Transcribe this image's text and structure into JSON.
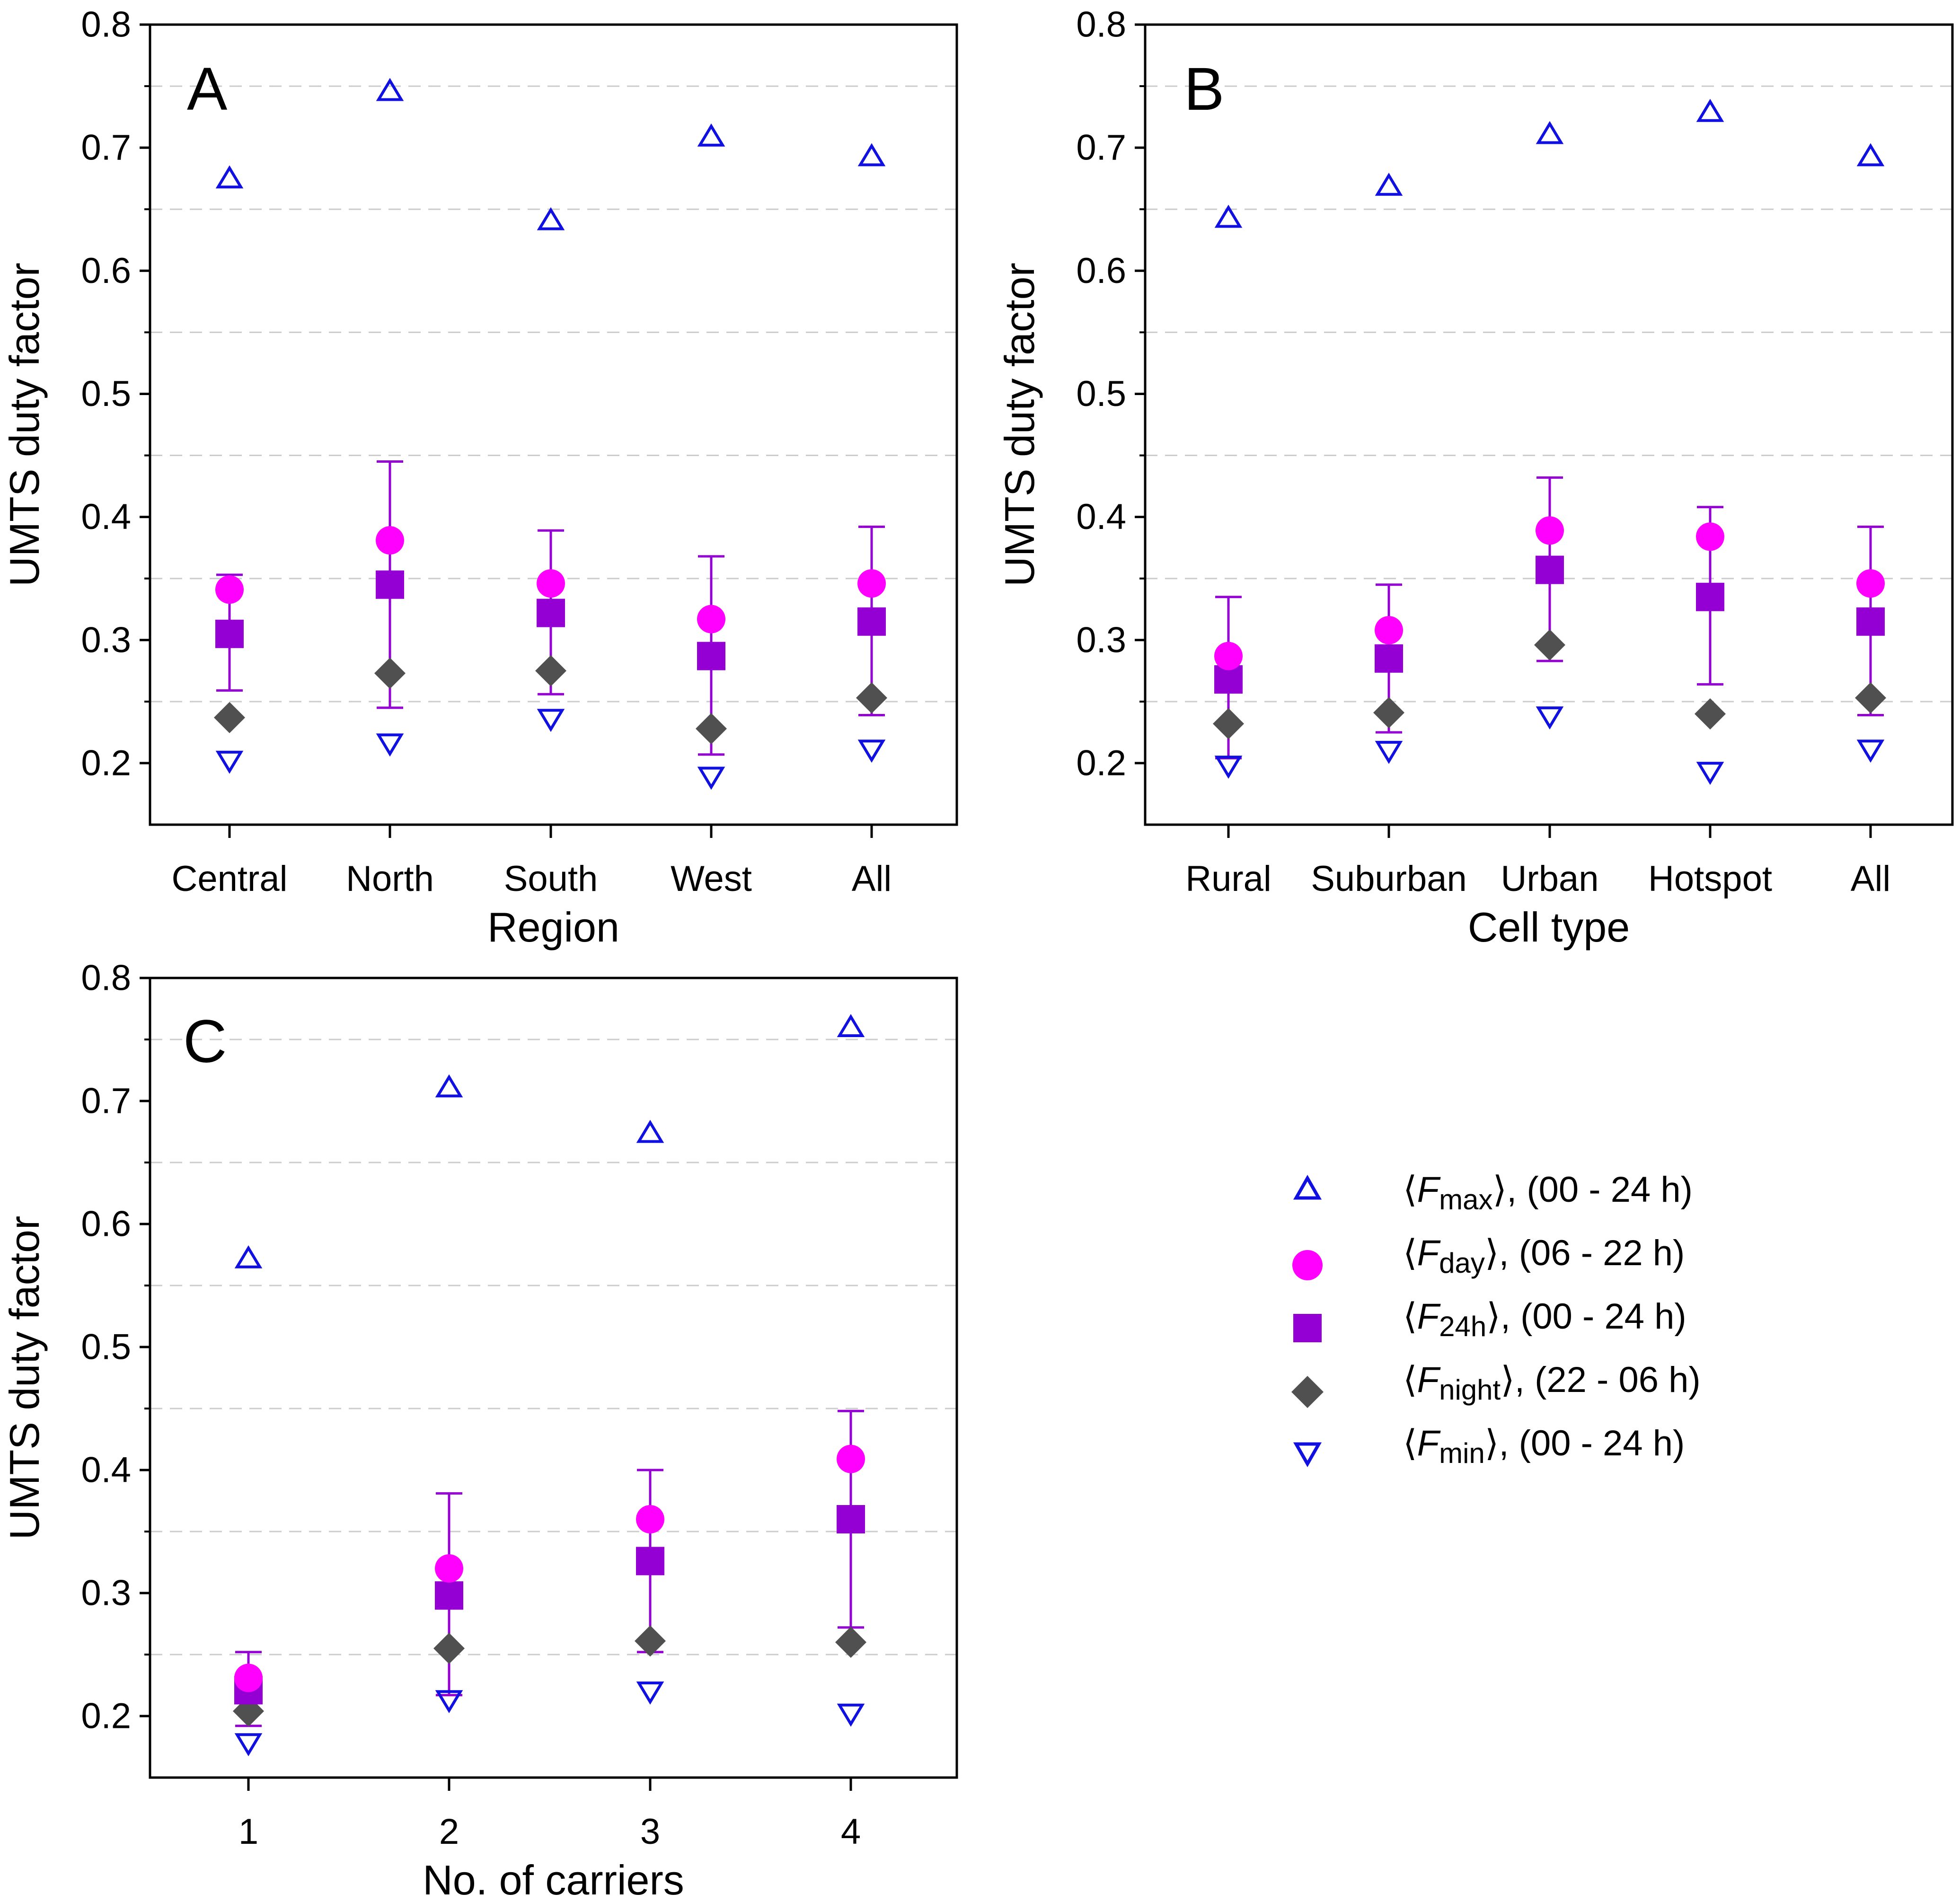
{
  "colors": {
    "max": "#1010e0",
    "day": "#ff00ff",
    "h24": "#9400d3",
    "night": "#505050",
    "min": "#1010e0",
    "err": "#9400d3",
    "grid": "#cccccc",
    "axis": "#000000"
  },
  "legend": {
    "max": {
      "open": "⟨",
      "F": "F",
      "sub": "max",
      "close": "⟩",
      "period": ", (00 - 24 h)"
    },
    "day": {
      "open": "⟨",
      "F": "F",
      "sub": "day",
      "close": "⟩",
      "period": ", (06 - 22 h)"
    },
    "h24": {
      "open": "⟨",
      "F": "F",
      "sub": "24h",
      "close": "⟩",
      "period": ", (00 - 24 h)"
    },
    "night": {
      "open": "⟨",
      "F": "F",
      "sub": "night",
      "close": "⟩",
      "period": ", (22 - 06 h)"
    },
    "min": {
      "open": "⟨",
      "F": "F",
      "sub": "min",
      "close": "⟩",
      "period": ", (00 - 24 h)"
    }
  },
  "chart_data": [
    {
      "type": "scatter",
      "panel": "A",
      "xlabel": "Region",
      "ylabel": "UMTS duty factor",
      "ylim": [
        0.15,
        0.8
      ],
      "yticks": [
        "0.2",
        "0.3",
        "0.4",
        "0.5",
        "0.6",
        "0.7",
        "0.8"
      ],
      "categories": [
        "Central",
        "North",
        "South",
        "West",
        "All"
      ],
      "series": [
        {
          "name": "Fmax",
          "values": [
            0.675,
            0.746,
            0.641,
            0.709,
            0.693
          ]
        },
        {
          "name": "Fday",
          "values": [
            0.341,
            0.381,
            0.346,
            0.317,
            0.346
          ]
        },
        {
          "name": "F24h",
          "values": [
            0.305,
            0.345,
            0.322,
            0.287,
            0.315
          ]
        },
        {
          "name": "Fnight",
          "values": [
            0.237,
            0.273,
            0.275,
            0.228,
            0.253
          ]
        },
        {
          "name": "Fmin",
          "values": [
            0.202,
            0.216,
            0.236,
            0.189,
            0.211
          ]
        }
      ],
      "error_bars": {
        "series": "F24h",
        "low": [
          0.259,
          0.245,
          0.256,
          0.207,
          0.239
        ],
        "high": [
          0.353,
          0.445,
          0.389,
          0.368,
          0.392
        ]
      }
    },
    {
      "type": "scatter",
      "panel": "B",
      "xlabel": "Cell type",
      "ylabel": "UMTS duty factor",
      "ylim": [
        0.15,
        0.8
      ],
      "yticks": [
        "0.2",
        "0.3",
        "0.4",
        "0.5",
        "0.6",
        "0.7",
        "0.8"
      ],
      "categories": [
        "Rural",
        "Suburban",
        "Urban",
        "Hotspot",
        "All"
      ],
      "series": [
        {
          "name": "Fmax",
          "values": [
            0.643,
            0.669,
            0.711,
            0.729,
            0.693
          ]
        },
        {
          "name": "Fday",
          "values": [
            0.287,
            0.308,
            0.389,
            0.384,
            0.346
          ]
        },
        {
          "name": "F24h",
          "values": [
            0.268,
            0.285,
            0.357,
            0.335,
            0.315
          ]
        },
        {
          "name": "Fnight",
          "values": [
            0.232,
            0.241,
            0.296,
            0.24,
            0.253
          ]
        },
        {
          "name": "Fmin",
          "values": [
            0.198,
            0.21,
            0.238,
            0.193,
            0.211
          ]
        }
      ],
      "error_bars": {
        "series": "F24h",
        "low": [
          0.204,
          0.225,
          0.283,
          0.264,
          0.239
        ],
        "high": [
          0.335,
          0.345,
          0.432,
          0.408,
          0.392
        ]
      }
    },
    {
      "type": "scatter",
      "panel": "C",
      "xlabel": "No. of carriers",
      "ylabel": "UMTS duty factor",
      "ylim": [
        0.15,
        0.8
      ],
      "yticks": [
        "0.2",
        "0.3",
        "0.4",
        "0.5",
        "0.6",
        "0.7",
        "0.8"
      ],
      "categories": [
        "1",
        "2",
        "3",
        "4"
      ],
      "series": [
        {
          "name": "Fmax",
          "values": [
            0.572,
            0.711,
            0.674,
            0.76
          ]
        },
        {
          "name": "Fday",
          "values": [
            0.231,
            0.32,
            0.36,
            0.409
          ]
        },
        {
          "name": "F24h",
          "values": [
            0.221,
            0.298,
            0.326,
            0.36
          ]
        },
        {
          "name": "Fnight",
          "values": [
            0.204,
            0.255,
            0.261,
            0.26
          ]
        },
        {
          "name": "Fmin",
          "values": [
            0.178,
            0.213,
            0.22,
            0.202
          ]
        }
      ],
      "error_bars": {
        "series": "F24h",
        "low": [
          0.192,
          0.217,
          0.252,
          0.272
        ],
        "high": [
          0.252,
          0.381,
          0.4,
          0.448
        ]
      }
    }
  ]
}
